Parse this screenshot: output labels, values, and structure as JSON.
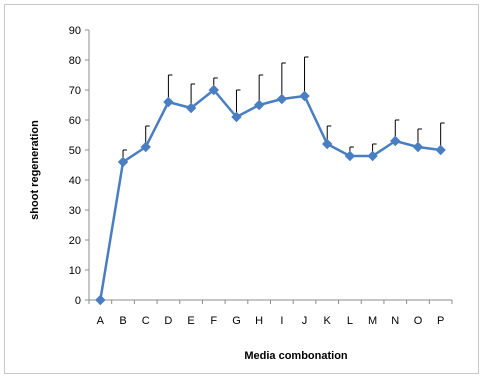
{
  "chart_data": {
    "type": "line",
    "title": "",
    "xlabel": "Media combonation",
    "ylabel": "shoot regeneration",
    "ylim": [
      0,
      90
    ],
    "yticks": [
      0,
      10,
      20,
      30,
      40,
      50,
      60,
      70,
      80,
      90
    ],
    "grid": false,
    "legend": "none",
    "categories": [
      "A",
      "B",
      "C",
      "D",
      "E",
      "F",
      "G",
      "H",
      "I",
      "J",
      "K",
      "L",
      "M",
      "N",
      "O",
      "P"
    ],
    "series": [
      {
        "values": [
          0,
          46,
          51,
          66,
          64,
          70,
          61,
          65,
          67,
          68,
          52,
          48,
          48,
          53,
          51,
          50
        ],
        "error_upper": [
          0,
          4,
          7,
          9,
          8,
          4,
          9,
          10,
          12,
          13,
          6,
          3,
          4,
          7,
          6,
          9
        ],
        "color": "#4a7ec2",
        "marker": "diamond"
      }
    ],
    "error_bar_color": "#000000"
  }
}
